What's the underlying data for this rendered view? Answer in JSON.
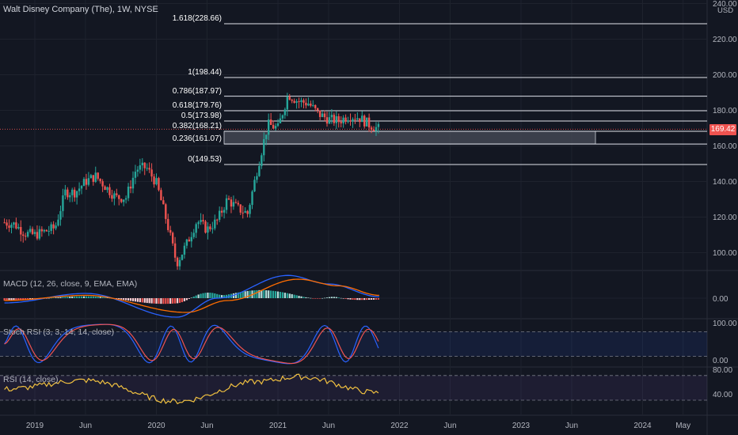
{
  "header": {
    "title": "Walt Disney Company (The), 1W, NYSE"
  },
  "price_axis": {
    "currency": "USD",
    "current_price": "169.42"
  },
  "chart_data": [
    {
      "type": "candlestick",
      "title": "Walt Disney Company (The), 1W, NYSE",
      "x_ticks": [
        "2019",
        "Jun",
        "2020",
        "Jun",
        "2021",
        "Jun",
        "2022",
        "Jun",
        "2023",
        "Jun",
        "2024",
        "May"
      ],
      "y_ticks": [
        100,
        120,
        140,
        160,
        180,
        200,
        220,
        240
      ],
      "y_tick_labels": [
        "100.00",
        "120.00",
        "140.00",
        "160.00",
        "180.00",
        "200.00",
        "220.00",
        "240.00"
      ],
      "ylim": [
        90,
        241
      ],
      "close_path": [
        [
          "2018-10",
          117
        ],
        [
          "2018-11",
          116
        ],
        [
          "2018-12",
          111
        ],
        [
          "2019-01",
          110
        ],
        [
          "2019-02",
          112
        ],
        [
          "2019-03",
          114
        ],
        [
          "2019-04",
          134
        ],
        [
          "2019-05",
          134
        ],
        [
          "2019-06",
          140
        ],
        [
          "2019-07",
          143
        ],
        [
          "2019-08",
          137
        ],
        [
          "2019-09",
          131
        ],
        [
          "2019-10",
          131
        ],
        [
          "2019-11",
          147
        ],
        [
          "2019-12",
          148
        ],
        [
          "2020-01",
          139
        ],
        [
          "2020-02",
          118
        ],
        [
          "2020-03",
          94
        ],
        [
          "2020-04",
          105
        ],
        [
          "2020-05",
          118
        ],
        [
          "2020-06",
          113
        ],
        [
          "2020-07",
          118
        ],
        [
          "2020-08",
          130
        ],
        [
          "2020-09",
          125
        ],
        [
          "2020-10",
          122
        ],
        [
          "2020-11",
          148
        ],
        [
          "2020-12",
          172
        ],
        [
          "2021-01",
          170
        ],
        [
          "2021-02",
          189
        ],
        [
          "2021-03",
          185
        ],
        [
          "2021-04",
          184
        ],
        [
          "2021-05",
          178
        ],
        [
          "2021-06",
          175
        ],
        [
          "2021-07",
          174
        ],
        [
          "2021-08",
          177
        ],
        [
          "2021-09",
          176
        ],
        [
          "2021-10",
          172
        ],
        [
          "2021-11",
          169.42
        ]
      ],
      "fibonacci": [
        {
          "label": "1.618(228.66)",
          "level": 1.618,
          "price": 228.66
        },
        {
          "label": "1(198.44)",
          "level": 1,
          "price": 198.44
        },
        {
          "label": "0.786(187.97)",
          "level": 0.786,
          "price": 187.97
        },
        {
          "label": "0.618(179.76)",
          "level": 0.618,
          "price": 179.76
        },
        {
          "label": "0.5(173.98)",
          "level": 0.5,
          "price": 173.98
        },
        {
          "label": "0.382(168.21)",
          "level": 0.382,
          "price": 168.21
        },
        {
          "label": "0.236(161.07)",
          "level": 0.236,
          "price": 161.07
        },
        {
          "label": "0(149.53)",
          "level": 0,
          "price": 149.53
        }
      ],
      "highlight_zone": {
        "from_price": 161.07,
        "to_price": 168.21
      },
      "last_price": 169.42
    },
    {
      "type": "line",
      "title": "MACD (12, 26, close, 9, EMA, EMA)",
      "y_tick_labels": [
        "0.00"
      ],
      "series": [
        {
          "color": "#2962ff",
          "trend": [
            "2018-10",
            -1,
            "2019-06",
            1,
            "2020-03",
            -4,
            "2020-07",
            0,
            "2021-02",
            4.8,
            "2021-06",
            3,
            "2021-11",
            0.3
          ]
        },
        {
          "color": "#ff6d00",
          "trend": [
            "2018-10",
            -0.5,
            "2019-06",
            0.6,
            "2020-04",
            -3,
            "2020-08",
            -0.5,
            "2021-03",
            4,
            "2021-07",
            2.6,
            "2021-11",
            0.6
          ]
        }
      ]
    },
    {
      "type": "line",
      "title": "Stoch RSI (3, 3, 14, 14, close)",
      "y_ticks": [
        0,
        100
      ],
      "y_tick_labels": [
        "0.00",
        "100.00"
      ],
      "bands": [
        20,
        80
      ]
    },
    {
      "type": "line",
      "title": "RSI (14, close)",
      "y_ticks": [
        40,
        80
      ],
      "y_tick_labels": [
        "40.00",
        "80.00"
      ],
      "bands": [
        30,
        70
      ],
      "series": [
        {
          "color": "#f0c040",
          "trend": [
            "2018-10",
            48,
            "2019-06",
            62,
            "2020-03",
            28,
            "2020-11",
            60,
            "2021-03",
            68,
            "2021-11",
            42
          ]
        }
      ]
    }
  ],
  "colors": {
    "up": "#26a69a",
    "down": "#ef5350",
    "background": "#131722",
    "grid": "#1e222d",
    "text": "#d1d4dc",
    "zone": "#363a45"
  }
}
